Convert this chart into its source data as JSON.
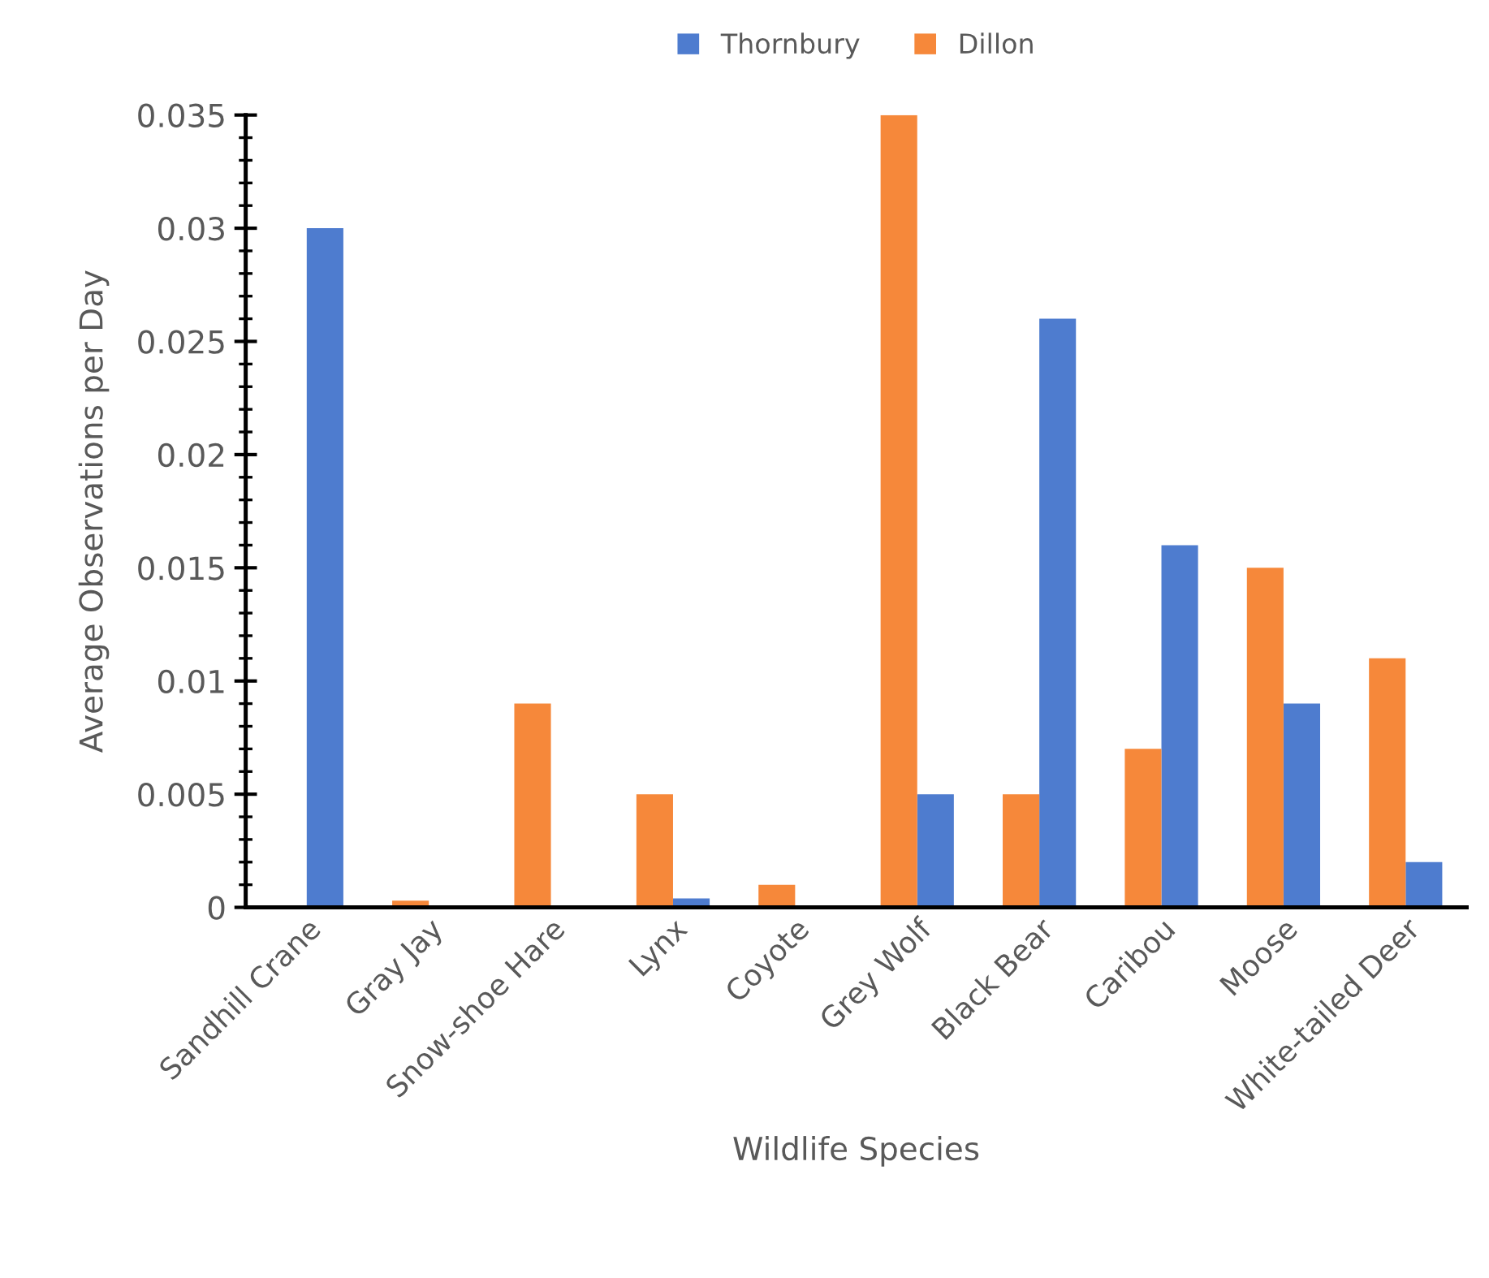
{
  "chart_data": {
    "type": "bar",
    "xlabel": "Wildlife Species",
    "ylabel": "Average Observations per Day",
    "categories": [
      "Sandhill Crane",
      "Gray Jay",
      "Snow-shoe Hare",
      "Lynx",
      "Coyote",
      "Grey Wolf",
      "Black Bear",
      "Caribou",
      "Moose",
      "White-tailed Deer"
    ],
    "series": [
      {
        "name": "Thornbury",
        "color": "#4e7ccf",
        "values": [
          0.03,
          0,
          0,
          0.0004,
          0,
          0.005,
          0.026,
          0.016,
          0.009,
          0.002
        ]
      },
      {
        "name": "Dillon",
        "color": "#f6883a",
        "values": [
          0,
          0.0003,
          0.009,
          0.005,
          0.001,
          0.035,
          0.005,
          0.007,
          0.015,
          0.011
        ]
      }
    ],
    "ylim": [
      0,
      0.035
    ],
    "yticks": [
      {
        "value": 0,
        "label": "0"
      },
      {
        "value": 0.005,
        "label": "0.005"
      },
      {
        "value": 0.01,
        "label": "0.01"
      },
      {
        "value": 0.015,
        "label": "0.015"
      },
      {
        "value": 0.02,
        "label": "0.02"
      },
      {
        "value": 0.025,
        "label": "0.025"
      },
      {
        "value": 0.03,
        "label": "0.03"
      },
      {
        "value": 0.035,
        "label": "0.035"
      }
    ],
    "grid": false,
    "legend": "top"
  }
}
